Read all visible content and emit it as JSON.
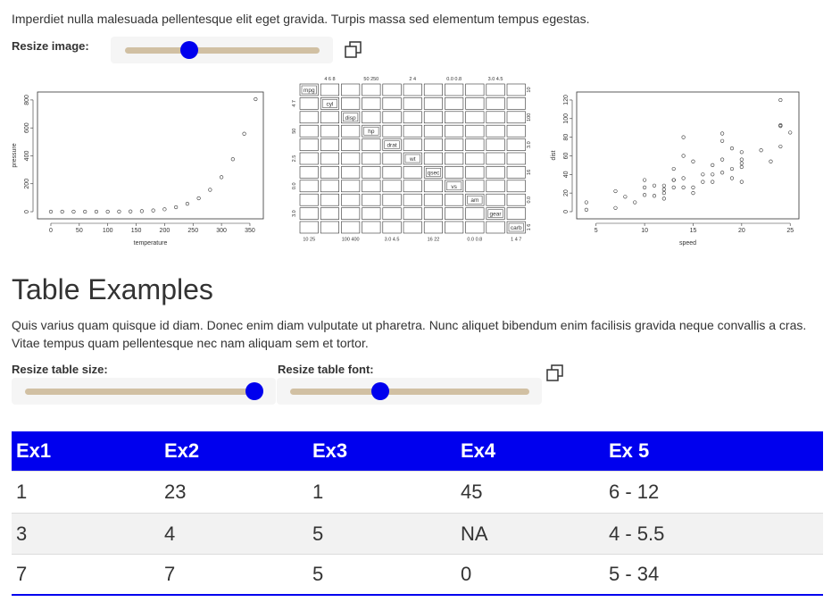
{
  "intro": "Imperdiet nulla malesuada pellentesque elit eget gravida. Turpis massa sed elementum tempus egestas.",
  "image_slider_label": "Resize image:",
  "chart_data": [
    {
      "type": "scatter",
      "xlabel": "temperature",
      "ylabel": "pressure",
      "x": [
        0,
        20,
        40,
        60,
        80,
        100,
        120,
        140,
        160,
        180,
        200,
        220,
        240,
        260,
        280,
        300,
        320,
        340,
        360
      ],
      "values": [
        0.0002,
        0.0012,
        0.006,
        0.03,
        0.09,
        0.27,
        0.75,
        1.85,
        4.2,
        8.8,
        17.3,
        32.1,
        57,
        96,
        157,
        247,
        376,
        558,
        806
      ],
      "xlim": [
        -23.5,
        373.6
      ],
      "ylim": [
        -51,
        857
      ],
      "xticks": [
        0,
        50,
        100,
        150,
        200,
        250,
        300,
        350
      ],
      "yticks": [
        0,
        200,
        400,
        600,
        800
      ]
    },
    {
      "type": "scatter",
      "xlabel": "speed",
      "ylabel": "dist",
      "x": [
        4,
        4,
        7,
        7,
        8,
        9,
        10,
        10,
        10,
        11,
        11,
        12,
        12,
        12,
        12,
        13,
        13,
        13,
        13,
        14,
        14,
        14,
        14,
        15,
        15,
        15,
        16,
        16,
        17,
        17,
        17,
        18,
        18,
        18,
        18,
        19,
        19,
        19,
        20,
        20,
        20,
        20,
        20,
        22,
        23,
        24,
        24,
        24,
        24,
        25
      ],
      "values": [
        2,
        10,
        4,
        22,
        16,
        10,
        18,
        26,
        34,
        17,
        28,
        14,
        20,
        24,
        28,
        26,
        34,
        34,
        46,
        26,
        36,
        60,
        80,
        20,
        26,
        54,
        32,
        40,
        32,
        40,
        50,
        42,
        56,
        76,
        84,
        36,
        46,
        68,
        32,
        48,
        52,
        56,
        64,
        66,
        54,
        70,
        92,
        93,
        120,
        85
      ],
      "xlim": [
        3,
        25.9
      ],
      "ylim": [
        -7.7,
        128.6
      ],
      "xticks": [
        5,
        10,
        15,
        20,
        25
      ],
      "yticks": [
        0,
        20,
        40,
        60,
        80,
        100,
        120
      ]
    }
  ],
  "pairs_plot": {
    "variables": [
      "mpg",
      "cyl",
      "disp",
      "hp",
      "drat",
      "wt",
      "qsec",
      "vs",
      "am",
      "gear",
      "carb"
    ],
    "top_ticks": [
      null,
      "4 6 8",
      null,
      "50 250",
      null,
      "2 4",
      null,
      "0.0 0.8",
      null,
      "3.0 4.5",
      null
    ],
    "bottom_ticks": [
      "10 25",
      null,
      "100 400",
      null,
      "3.0 4.5",
      null,
      "16 22",
      null,
      "0.0 0.8",
      null,
      "1 4 7"
    ],
    "left_ticks": [
      null,
      "4 7",
      null,
      "50",
      null,
      "2.5",
      null,
      "0.0",
      null,
      "3.0",
      null
    ],
    "right_ticks": [
      "10",
      null,
      "100",
      null,
      "3.0",
      null,
      "16",
      null,
      "0.0",
      null,
      "1 6"
    ]
  },
  "heading": "Table Examples",
  "paragraph": "Quis varius quam quisque id diam. Donec enim diam vulputate ut pharetra. Nunc aliquet bibendum enim facilisis gravida neque convallis a cras. Vitae tempus quam pellentesque nec nam aliquam sem et tortor.",
  "table_size_label": "Resize table size:",
  "table_font_label": "Resize table font:",
  "table": {
    "header": [
      "Ex1",
      "Ex2",
      "Ex3",
      "Ex4",
      "Ex 5"
    ],
    "rows": [
      [
        "1",
        "23",
        "1",
        "45",
        "6 - 12"
      ],
      [
        "3",
        "4",
        "5",
        "NA",
        "4 - 5.5"
      ],
      [
        "7",
        "7",
        "5",
        "0",
        "5 - 34"
      ]
    ]
  }
}
